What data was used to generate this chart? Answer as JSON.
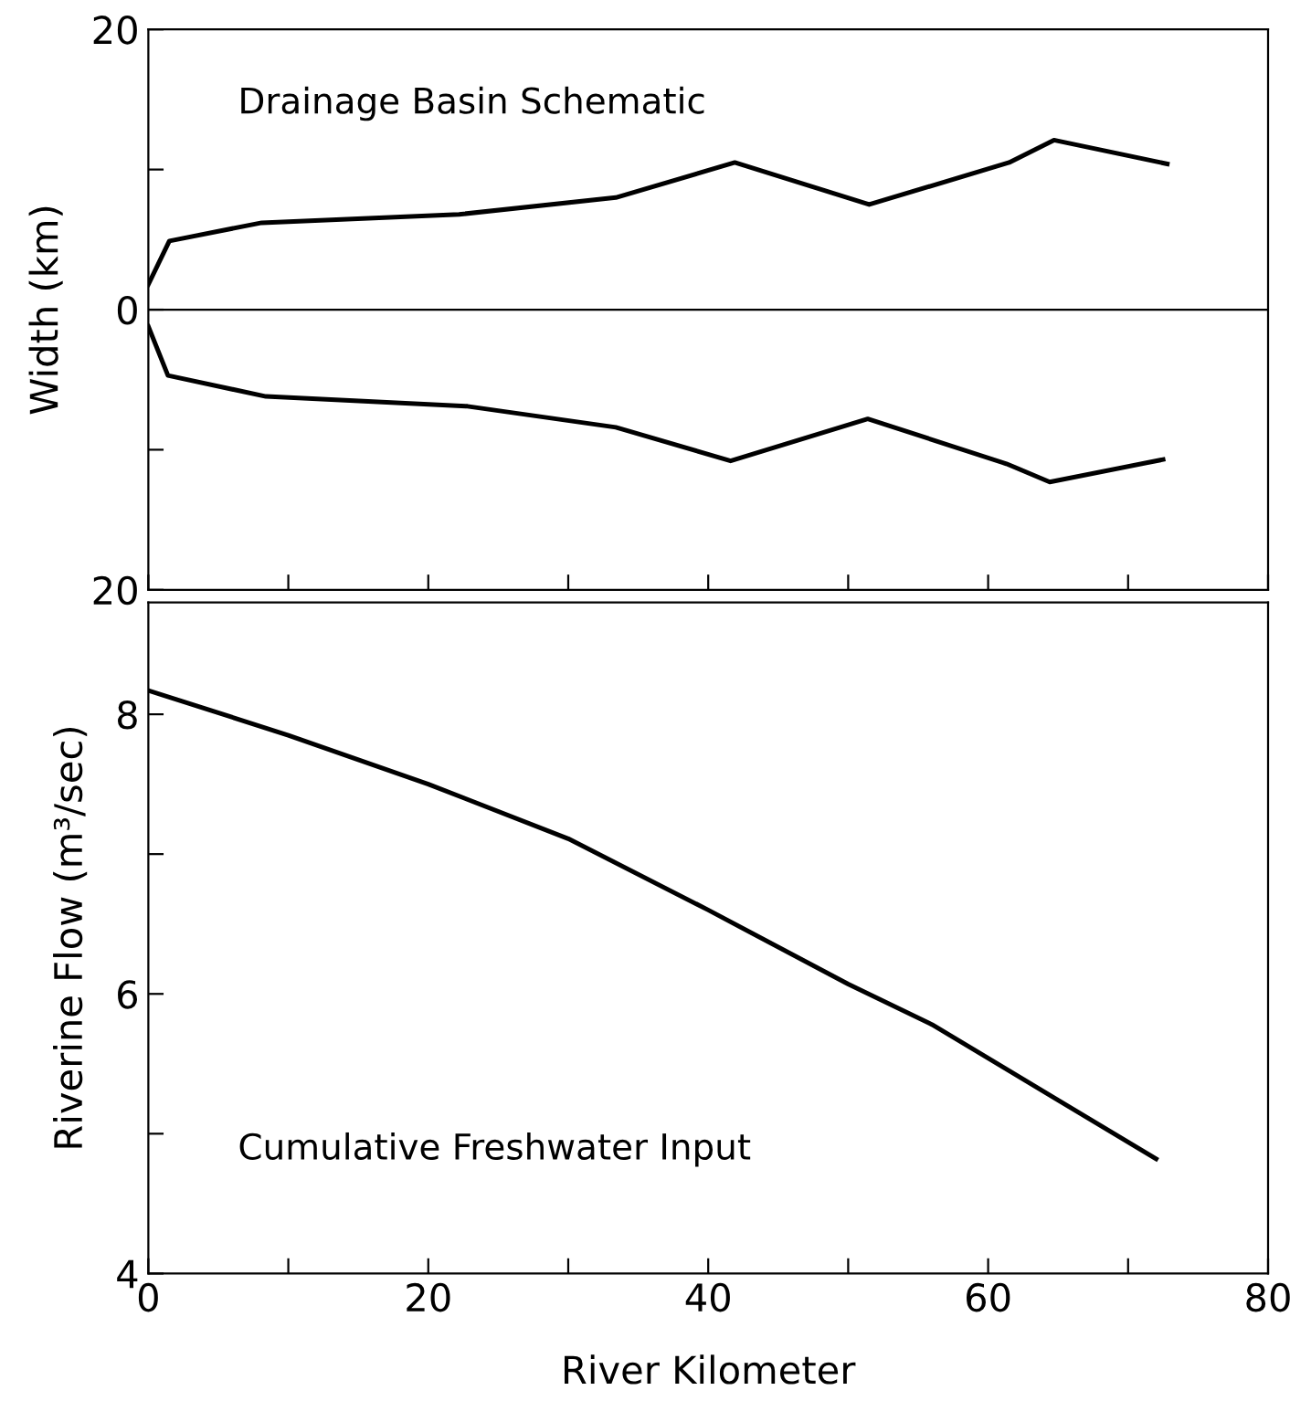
{
  "chart_data": [
    {
      "type": "line",
      "ylabel": "Width (km)",
      "annotations": [
        "Drainage Basin Schematic"
      ],
      "xlim": [
        0,
        80
      ],
      "xticks": [
        {
          "value": 0,
          "label": null
        },
        {
          "value": 10,
          "label": null
        },
        {
          "value": 20,
          "label": null
        },
        {
          "value": 30,
          "label": null
        },
        {
          "value": 40,
          "label": null
        },
        {
          "value": 50,
          "label": null
        },
        {
          "value": 60,
          "label": null
        },
        {
          "value": 70,
          "label": null
        },
        {
          "value": 80,
          "label": null
        }
      ],
      "ylim": [
        -20,
        20
      ],
      "yticks": [
        {
          "value": -20,
          "label": "20"
        },
        {
          "value": -10,
          "label": null
        },
        0,
        {
          "value": 10,
          "label": null
        },
        20
      ],
      "tick_labels": "y",
      "grid": false,
      "legend": false,
      "ref_lines": [
        {
          "axis": "y",
          "value": 0,
          "color": "#000000"
        }
      ],
      "series": [
        {
          "color": "#000000",
          "x": [
            0,
            1.5,
            8.1,
            22.2,
            33.4,
            41.9,
            51.5,
            61.5,
            64.7,
            72.8
          ],
          "values": [
            1.8,
            4.9,
            6.2,
            6.8,
            8.0,
            10.5,
            7.5,
            10.5,
            12.1,
            10.4
          ]
        },
        {
          "color": "#000000",
          "x": [
            0,
            1.4,
            8.4,
            22.8,
            33.4,
            41.6,
            51.4,
            61.3,
            64.4,
            72.5
          ],
          "values": [
            -1.2,
            -4.7,
            -6.2,
            -6.9,
            -8.4,
            -10.8,
            -7.8,
            -11.0,
            -12.3,
            -10.7
          ]
        }
      ]
    },
    {
      "type": "line",
      "xlabel": "River Kilometer",
      "ylabel": "Riverine Flow (m³/sec)",
      "annotations": [
        "Cumulative Freshwater Input"
      ],
      "xlim": [
        0,
        80
      ],
      "xticks": [
        0,
        {
          "value": 10,
          "label": null
        },
        20,
        {
          "value": 30,
          "label": null
        },
        40,
        {
          "value": 50,
          "label": null
        },
        60,
        {
          "value": 70,
          "label": null
        },
        80
      ],
      "ylim": [
        4,
        8.8
      ],
      "yticks": [
        4,
        {
          "value": 5,
          "label": null
        },
        6,
        {
          "value": 7,
          "label": null
        },
        8
      ],
      "grid": false,
      "legend": false,
      "series": [
        {
          "color": "#000000",
          "x": [
            0,
            10,
            20,
            30,
            40,
            50,
            56,
            60,
            65,
            72
          ],
          "values": [
            8.17,
            7.85,
            7.5,
            7.11,
            6.6,
            6.07,
            5.78,
            5.54,
            5.24,
            4.82
          ]
        }
      ]
    }
  ]
}
